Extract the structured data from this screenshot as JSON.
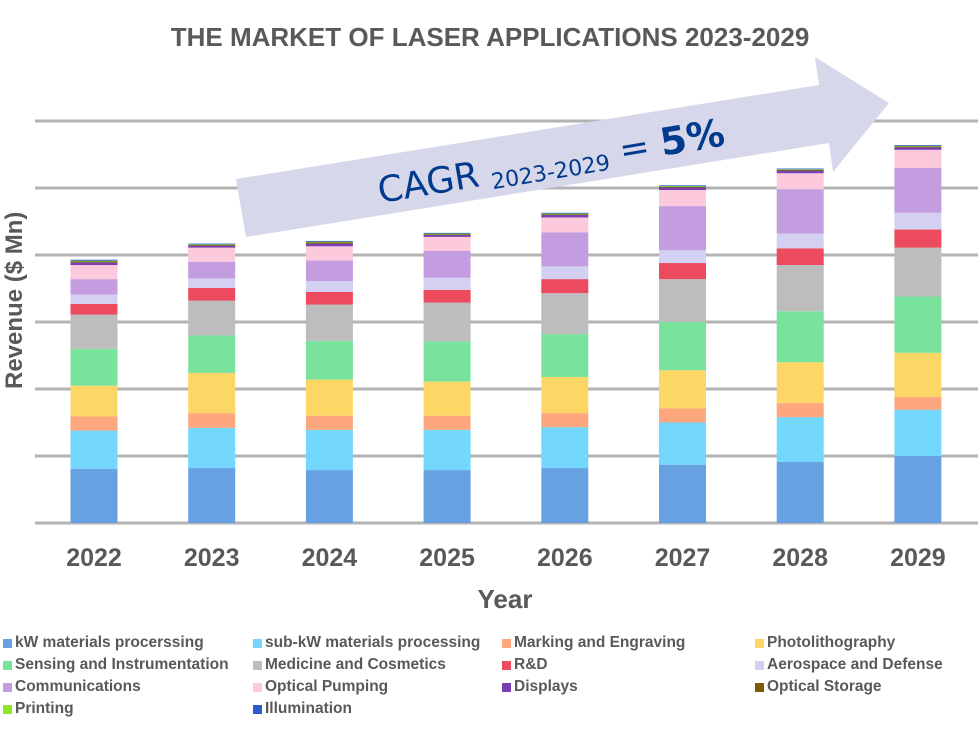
{
  "chart_data": {
    "type": "bar",
    "stacked": true,
    "title": "THE MARKET OF LASER APPLICATIONS 2023-2029",
    "xlabel": "Year",
    "ylabel": "Revenue ($ Mn)",
    "y_tick_labels_shown": false,
    "ylim": [
      0,
      600
    ],
    "grid": true,
    "legend_placement": "bottom",
    "categories": [
      "2022",
      "2023",
      "2024",
      "2025",
      "2026",
      "2027",
      "2028",
      "2029"
    ],
    "series": [
      {
        "name": "kW materials procerssing",
        "color": "#67a1e2",
        "values": [
          81,
          82,
          79,
          79,
          82,
          87,
          91,
          100
        ]
      },
      {
        "name": "sub-kW materials processing",
        "color": "#74d7fd",
        "values": [
          57,
          60,
          60,
          60,
          61,
          63,
          67,
          69
        ]
      },
      {
        "name": "Marking and Engraving",
        "color": "#fea77f",
        "values": [
          21,
          22,
          21,
          21,
          21,
          21,
          21,
          19
        ]
      },
      {
        "name": "Photolithography",
        "color": "#fdd766",
        "values": [
          46,
          60,
          54,
          51,
          54,
          57,
          61,
          66
        ]
      },
      {
        "name": "Sensing and Instrumentation",
        "color": "#79e39e",
        "values": [
          55,
          56,
          58,
          60,
          64,
          72,
          76,
          84
        ]
      },
      {
        "name": "Medicine and Cosmetics",
        "color": "#bdbdbd",
        "values": [
          51,
          52,
          54,
          58,
          61,
          64,
          69,
          73
        ]
      },
      {
        "name": "R&D",
        "color": "#ec4a5e",
        "values": [
          16,
          19,
          19,
          19,
          21,
          24,
          25,
          27
        ]
      },
      {
        "name": "Aerospace and Defense",
        "color": "#d3d0f2",
        "values": [
          14,
          14,
          16,
          18,
          19,
          19,
          22,
          25
        ]
      },
      {
        "name": "Communications",
        "color": "#c39de0",
        "values": [
          23,
          25,
          31,
          40,
          51,
          66,
          66,
          67
        ]
      },
      {
        "name": "Optical Pumping",
        "color": "#fcc9dd",
        "values": [
          21,
          21,
          21,
          21,
          22,
          24,
          24,
          27
        ]
      },
      {
        "name": "Displays",
        "color": "#7a3fb0",
        "values": [
          4,
          3,
          4,
          3,
          4,
          4,
          4,
          4
        ]
      },
      {
        "name": "Optical Storage",
        "color": "#7c5a06",
        "values": [
          1.5,
          1,
          2,
          1,
          1,
          1,
          1,
          1
        ]
      },
      {
        "name": "Printing",
        "color": "#8ee52a",
        "values": [
          1,
          1,
          1,
          1,
          1,
          1,
          1,
          1
        ]
      },
      {
        "name": "Illumination",
        "color": "#2a5bc9",
        "values": [
          1.5,
          1,
          1,
          1,
          1,
          1,
          1,
          1
        ]
      }
    ],
    "annotation": {
      "main": "CAGR ",
      "sub": "2023-2029",
      "rest": " = ",
      "value": "5%",
      "text_color": "#003a8c",
      "arrow_color": "#d6d7ea"
    }
  }
}
